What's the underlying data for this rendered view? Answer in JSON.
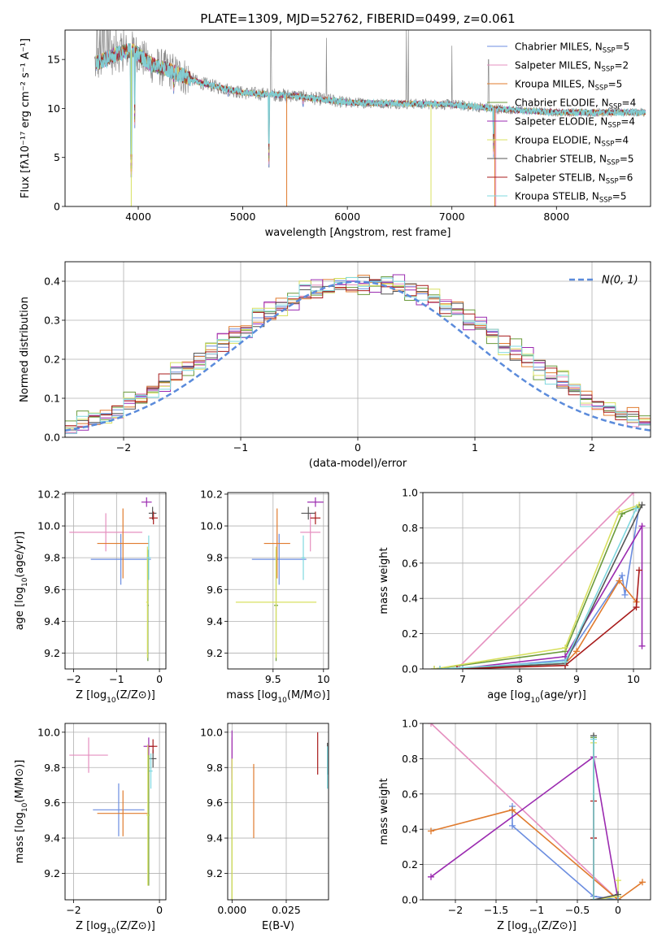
{
  "figure_title": "PLATE=1309, MJD=52762, FIBERID=0499, z=0.061",
  "colors": {
    "Chabrier MILES": "#6c8ee0",
    "Salpeter MILES": "#e58fbf",
    "Kroupa MILES": "#e07b2e",
    "Chabrier ELODIE": "#6a9a3a",
    "Salpeter ELODIE": "#9b2bb0",
    "Kroupa ELODIE": "#d8e060",
    "Chabrier STELIB": "#555555",
    "Salpeter STELIB": "#a81c1c",
    "Kroupa STELIB": "#7fd8df",
    "data_grey": "#8a8a8a",
    "normal_curve": "#5b8bdb",
    "grid": "#b0b0b0"
  },
  "chart_data": [
    {
      "id": "spectrum",
      "type": "line",
      "title": "PLATE=1309, MJD=52762, FIBERID=0499, z=0.061",
      "xlabel": "wavelength [Angstrom, rest frame]",
      "ylabel": "Flux [fλ10⁻¹⁷ erg cm⁻² s⁻¹ A⁻¹]",
      "xlim": [
        3300,
        8900
      ],
      "ylim": [
        0,
        18
      ],
      "xticks": [
        4000,
        5000,
        6000,
        7000,
        8000
      ],
      "yticks": [
        0,
        5,
        10,
        15
      ],
      "legend_position": "top-right",
      "legend": [
        {
          "label": "Chabrier MILES, N",
          "sub": "SSP",
          "tail": "=5"
        },
        {
          "label": "Salpeter MILES, N",
          "sub": "SSP",
          "tail": "=2"
        },
        {
          "label": "Kroupa MILES, N",
          "sub": "SSP",
          "tail": "=5"
        },
        {
          "label": "Chabrier ELODIE, N",
          "sub": "SSP",
          "tail": "=4"
        },
        {
          "label": "Salpeter ELODIE, N",
          "sub": "SSP",
          "tail": "=4"
        },
        {
          "label": "Kroupa ELODIE, N",
          "sub": "SSP",
          "tail": "=4"
        },
        {
          "label": "Chabrier STELIB, N",
          "sub": "SSP",
          "tail": "=5"
        },
        {
          "label": "Salpeter STELIB, N",
          "sub": "SSP",
          "tail": "=6"
        },
        {
          "label": "Kroupa STELIB, N",
          "sub": "SSP",
          "tail": "=5"
        }
      ],
      "continuum": [
        [
          3600,
          14.6
        ],
        [
          3800,
          15.6
        ],
        [
          3950,
          16.0
        ],
        [
          4100,
          14.6
        ],
        [
          4300,
          13.9
        ],
        [
          4600,
          12.6
        ],
        [
          5000,
          11.6
        ],
        [
          5500,
          11.3
        ],
        [
          6000,
          10.6
        ],
        [
          6500,
          10.5
        ],
        [
          7000,
          10.4
        ],
        [
          7500,
          9.9
        ],
        [
          8000,
          9.6
        ],
        [
          8500,
          9.6
        ],
        [
          8850,
          9.6
        ]
      ],
      "dips": [
        [
          3933,
          1.0
        ],
        [
          3968,
          6.0
        ],
        [
          4340,
          9.5
        ],
        [
          4861,
          9.2
        ],
        [
          5175,
          9.3
        ],
        [
          5250,
          2.0
        ],
        [
          5420,
          8.5
        ],
        [
          5577,
          8.2
        ],
        [
          5890,
          9.3
        ],
        [
          6300,
          8.5
        ],
        [
          6800,
          8.9
        ],
        [
          7400,
          3.0
        ],
        [
          7420,
          8.0
        ]
      ],
      "spikes": [
        [
          3607,
          18
        ],
        [
          3627,
          18
        ],
        [
          3660,
          18
        ],
        [
          3700,
          18
        ],
        [
          3730,
          18
        ],
        [
          3860,
          18
        ],
        [
          5270,
          18
        ],
        [
          5800,
          17.2
        ],
        [
          6563,
          18
        ],
        [
          6583,
          18
        ],
        [
          7000,
          16.4
        ],
        [
          7350,
          15.0
        ]
      ]
    },
    {
      "id": "residuals",
      "type": "histogram",
      "xlabel": "(data-model)/error",
      "ylabel": "Normed distribution",
      "xlim": [
        -2.5,
        2.5
      ],
      "ylim": [
        0,
        0.45
      ],
      "xticks": [
        -2,
        -1,
        0,
        1,
        2
      ],
      "yticks": [
        0.0,
        0.1,
        0.2,
        0.3,
        0.4
      ],
      "legend_position": "top-right",
      "legend_label": "N(0, 1)",
      "bin_width": 0.1,
      "bin_start": -2.5,
      "model_bins": [
        0.031,
        0.036,
        0.046,
        0.055,
        0.07,
        0.09,
        0.1,
        0.12,
        0.14,
        0.16,
        0.18,
        0.2,
        0.22,
        0.24,
        0.265,
        0.28,
        0.305,
        0.32,
        0.34,
        0.355,
        0.37,
        0.375,
        0.38,
        0.39,
        0.39,
        0.395,
        0.4,
        0.39,
        0.385,
        0.38,
        0.37,
        0.355,
        0.34,
        0.325,
        0.305,
        0.285,
        0.265,
        0.24,
        0.22,
        0.2,
        0.18,
        0.16,
        0.14,
        0.12,
        0.1,
        0.085,
        0.07,
        0.06,
        0.05,
        0.04
      ],
      "series_offsets": [
        0.0,
        -0.012,
        0.012,
        -0.02,
        0.018,
        0.02,
        -0.008,
        0.008,
        -0.015
      ]
    },
    {
      "id": "age_vs_Z",
      "type": "errorbar",
      "xlabel": "Z [log10(Z/Z⊙)]",
      "ylabel": "age  [log10(age/yr)]",
      "xlim": [
        -2.2,
        0.15
      ],
      "ylim": [
        9.1,
        10.21
      ],
      "xticks": [
        -2,
        -1,
        0
      ],
      "yticks": [
        9.2,
        9.4,
        9.6,
        9.8,
        10.0,
        10.2
      ],
      "points": [
        {
          "model": "Chabrier MILES",
          "x": -0.9,
          "xerr": 0.7,
          "y": 9.79,
          "yerr": 0.16
        },
        {
          "model": "Salpeter MILES",
          "x": -1.25,
          "xerr": 0.85,
          "y": 9.96,
          "yerr": 0.12
        },
        {
          "model": "Kroupa MILES",
          "x": -0.85,
          "xerr": 0.6,
          "y": 9.89,
          "yerr": 0.22
        },
        {
          "model": "Chabrier ELODIE",
          "x": -0.27,
          "xerr": 0.02,
          "y": 9.5,
          "yerr": 0.35
        },
        {
          "model": "Salpeter ELODIE",
          "x": -0.3,
          "xerr": 0.12,
          "y": 10.15,
          "yerr": 0.03
        },
        {
          "model": "Kroupa ELODIE",
          "x": -0.28,
          "xerr": 0.03,
          "y": 9.52,
          "yerr": 0.35
        },
        {
          "model": "Chabrier STELIB",
          "x": -0.16,
          "xerr": 0.09,
          "y": 10.08,
          "yerr": 0.04
        },
        {
          "model": "Salpeter STELIB",
          "x": -0.14,
          "xerr": 0.1,
          "y": 10.05,
          "yerr": 0.04
        },
        {
          "model": "Kroupa STELIB",
          "x": -0.25,
          "xerr": 0.05,
          "y": 9.8,
          "yerr": 0.14
        }
      ]
    },
    {
      "id": "age_vs_mass",
      "type": "errorbar",
      "xlabel": "mass [log10(M/M⊙)]",
      "ylabel": "",
      "xlim": [
        9.05,
        10.05
      ],
      "ylim": [
        9.1,
        10.21
      ],
      "xticks": [
        9.5,
        10.0
      ],
      "yticks": [
        9.2,
        9.4,
        9.6,
        9.8,
        10.0,
        10.2
      ],
      "points": [
        {
          "model": "Chabrier MILES",
          "x": 9.56,
          "xerr": 0.27,
          "y": 9.79,
          "yerr": 0.16
        },
        {
          "model": "Salpeter MILES",
          "x": 9.87,
          "xerr": 0.1,
          "y": 9.96,
          "yerr": 0.12
        },
        {
          "model": "Kroupa MILES",
          "x": 9.54,
          "xerr": 0.13,
          "y": 9.89,
          "yerr": 0.22
        },
        {
          "model": "Chabrier ELODIE",
          "x": 9.53,
          "xerr": 0.02,
          "y": 9.5,
          "yerr": 0.35
        },
        {
          "model": "Salpeter ELODIE",
          "x": 9.92,
          "xerr": 0.08,
          "y": 10.15,
          "yerr": 0.03
        },
        {
          "model": "Kroupa ELODIE",
          "x": 9.53,
          "xerr": 0.4,
          "y": 9.52,
          "yerr": 0.35
        },
        {
          "model": "Chabrier STELIB",
          "x": 9.85,
          "xerr": 0.07,
          "y": 10.08,
          "yerr": 0.04
        },
        {
          "model": "Salpeter STELIB",
          "x": 9.92,
          "xerr": 0.05,
          "y": 10.05,
          "yerr": 0.04
        },
        {
          "model": "Kroupa STELIB",
          "x": 9.8,
          "xerr": 0.02,
          "y": 9.8,
          "yerr": 0.14
        }
      ]
    },
    {
      "id": "weight_vs_age",
      "type": "line",
      "xlabel": "age  [log10(age/yr)]",
      "ylabel": "mass weight",
      "xlim": [
        6.3,
        10.3
      ],
      "ylim": [
        0,
        1
      ],
      "xticks": [
        7,
        8,
        9,
        10
      ],
      "yticks": [
        0.0,
        0.2,
        0.4,
        0.6,
        0.8,
        1.0
      ],
      "series": [
        {
          "model": "Chabrier MILES",
          "x": [
            7.0,
            8.8,
            9.8,
            9.85,
            10.1
          ],
          "y": [
            0.0,
            0.05,
            0.53,
            0.42,
            0.92
          ]
        },
        {
          "model": "Salpeter MILES",
          "x": [
            6.9,
            10.0
          ],
          "y": [
            0.0,
            1.0
          ]
        },
        {
          "model": "Kroupa MILES",
          "x": [
            6.9,
            8.8,
            9.0,
            9.75,
            10.05
          ],
          "y": [
            0.0,
            0.03,
            0.1,
            0.5,
            0.38
          ]
        },
        {
          "model": "Chabrier ELODIE",
          "x": [
            6.5,
            8.8,
            9.8,
            10.1
          ],
          "y": [
            0.0,
            0.1,
            0.88,
            0.92
          ]
        },
        {
          "model": "Salpeter ELODIE",
          "x": [
            6.9,
            8.8,
            10.15,
            10.15
          ],
          "y": [
            0.0,
            0.07,
            0.81,
            0.13
          ]
        },
        {
          "model": "Kroupa ELODIE",
          "x": [
            6.5,
            8.8,
            9.75,
            10.1
          ],
          "y": [
            0.0,
            0.12,
            0.89,
            0.93
          ]
        },
        {
          "model": "Chabrier STELIB",
          "x": [
            6.6,
            8.8,
            10.15
          ],
          "y": [
            0.0,
            0.03,
            0.93
          ]
        },
        {
          "model": "Salpeter STELIB",
          "x": [
            6.9,
            8.8,
            10.05,
            10.1
          ],
          "y": [
            0.0,
            0.02,
            0.35,
            0.56
          ]
        },
        {
          "model": "Kroupa STELIB",
          "x": [
            6.6,
            8.8,
            10.05
          ],
          "y": [
            0.0,
            0.04,
            0.91
          ]
        }
      ]
    },
    {
      "id": "mass_vs_Z",
      "type": "errorbar",
      "xlabel": "Z [log10(Z/Z⊙)]",
      "ylabel": "mass [log10(M/M⊙)]",
      "xlim": [
        -2.2,
        0.15
      ],
      "ylim": [
        9.05,
        10.05
      ],
      "xticks": [
        -2,
        0
      ],
      "yticks": [
        9.2,
        9.4,
        9.6,
        9.8,
        10.0
      ],
      "points": [
        {
          "model": "Chabrier MILES",
          "x": -0.95,
          "xerr": 0.6,
          "y": 9.56,
          "yerr": 0.15
        },
        {
          "model": "Salpeter MILES",
          "x": -1.65,
          "xerr": 0.45,
          "y": 9.87,
          "yerr": 0.1
        },
        {
          "model": "Kroupa MILES",
          "x": -0.85,
          "xerr": 0.6,
          "y": 9.54,
          "yerr": 0.13
        },
        {
          "model": "Chabrier ELODIE",
          "x": -0.25,
          "xerr": 0.02,
          "y": 9.53,
          "yerr": 0.4
        },
        {
          "model": "Salpeter ELODIE",
          "x": -0.25,
          "xerr": 0.12,
          "y": 9.92,
          "yerr": 0.05
        },
        {
          "model": "Kroupa ELODIE",
          "x": -0.27,
          "xerr": 0.03,
          "y": 9.53,
          "yerr": 0.4
        },
        {
          "model": "Chabrier STELIB",
          "x": -0.15,
          "xerr": 0.08,
          "y": 9.85,
          "yerr": 0.05
        },
        {
          "model": "Salpeter STELIB",
          "x": -0.15,
          "xerr": 0.1,
          "y": 9.92,
          "yerr": 0.04
        },
        {
          "model": "Kroupa STELIB",
          "x": -0.2,
          "xerr": 0.04,
          "y": 9.78,
          "yerr": 0.1
        }
      ]
    },
    {
      "id": "mass_vs_ebv",
      "type": "errorbar",
      "xlabel": "E(B-V)",
      "ylabel": "",
      "xlim": [
        -0.002,
        0.0445
      ],
      "ylim": [
        9.05,
        10.05
      ],
      "xticks": [
        0.0,
        0.025
      ],
      "xtick_labels": [
        "0.000",
        "0.025"
      ],
      "yticks": [
        9.2,
        9.4,
        9.6,
        9.8,
        10.0
      ],
      "points": [
        {
          "model": "Chabrier MILES",
          "x": 0.0,
          "xerr": 0.0,
          "y": 9.56,
          "yerr": 0.15
        },
        {
          "model": "Salpeter MILES",
          "x": 0.0,
          "xerr": 0.0,
          "y": 9.87,
          "yerr": 0.1
        },
        {
          "model": "Kroupa MILES",
          "x": 0.01,
          "xerr": 0.0,
          "y": 9.61,
          "yerr": 0.21
        },
        {
          "model": "Chabrier ELODIE",
          "x": 0.0,
          "xerr": 0.0,
          "y": 9.45,
          "yerr": 0.4
        },
        {
          "model": "Salpeter ELODIE",
          "x": 0.0,
          "xerr": 0.0,
          "y": 9.87,
          "yerr": 0.14
        },
        {
          "model": "Kroupa ELODIE",
          "x": 0.0,
          "xerr": 0.0,
          "y": 9.45,
          "yerr": 0.4
        },
        {
          "model": "Chabrier STELIB",
          "x": 0.044,
          "xerr": 0.0,
          "y": 9.85,
          "yerr": 0.09
        },
        {
          "model": "Salpeter STELIB",
          "x": 0.0395,
          "xerr": 0.0,
          "y": 9.88,
          "yerr": 0.12
        },
        {
          "model": "Kroupa STELIB",
          "x": 0.044,
          "xerr": 0.0,
          "y": 9.8,
          "yerr": 0.12
        }
      ]
    },
    {
      "id": "weight_vs_Z",
      "type": "line",
      "xlabel": "Z [log10(Z/Z⊙)]",
      "ylabel": "mass weight",
      "xlim": [
        -2.4,
        0.4
      ],
      "ylim": [
        0,
        1
      ],
      "xticks": [
        -2.0,
        -1.5,
        -1.0,
        -0.5,
        0.0
      ],
      "yticks": [
        0.0,
        0.2,
        0.4,
        0.6,
        0.8,
        1.0
      ],
      "series": [
        {
          "model": "Chabrier MILES",
          "x": [
            -1.3,
            -1.3,
            -0.3,
            0.0
          ],
          "y": [
            0.53,
            0.42,
            0.02,
            0.0
          ]
        },
        {
          "model": "Salpeter MILES",
          "x": [
            -2.3,
            0.0
          ],
          "y": [
            1.0,
            0.0
          ]
        },
        {
          "model": "Kroupa MILES",
          "x": [
            -2.3,
            -1.3,
            0.0,
            0.3
          ],
          "y": [
            0.39,
            0.51,
            0.0,
            0.1
          ]
        },
        {
          "model": "Chabrier ELODIE",
          "x": [
            -0.3,
            -0.3,
            0.0
          ],
          "y": [
            0.92,
            0.0,
            0.0
          ]
        },
        {
          "model": "Salpeter ELODIE",
          "x": [
            -2.3,
            -0.3,
            0.0
          ],
          "y": [
            0.13,
            0.81,
            0.0
          ]
        },
        {
          "model": "Kroupa ELODIE",
          "x": [
            -0.3,
            -0.3,
            0.0,
            0.0
          ],
          "y": [
            0.89,
            0.0,
            0.02,
            0.11
          ]
        },
        {
          "model": "Chabrier STELIB",
          "x": [
            -0.3,
            -0.3,
            0.0
          ],
          "y": [
            0.93,
            0.0,
            0.03
          ]
        },
        {
          "model": "Salpeter STELIB",
          "x": [
            -0.3,
            -0.3,
            -0.3,
            0.0
          ],
          "y": [
            0.56,
            0.35,
            0.0,
            0.0
          ]
        },
        {
          "model": "Kroupa STELIB",
          "x": [
            -0.3,
            -0.3,
            0.0
          ],
          "y": [
            0.91,
            0.0,
            0.0
          ]
        }
      ]
    }
  ]
}
